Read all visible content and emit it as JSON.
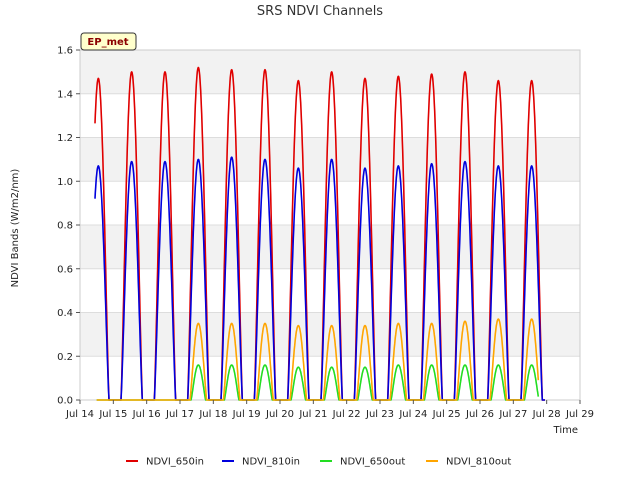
{
  "chart_data": {
    "type": "line",
    "title": "SRS NDVI Channels",
    "xlabel": "Time",
    "ylabel": "NDVI Bands (W/m2/nm)",
    "badge": "EP_met",
    "xlim": [
      14,
      29
    ],
    "ylim": [
      0,
      1.6
    ],
    "x_ticks": [
      14,
      15,
      16,
      17,
      18,
      19,
      20,
      21,
      22,
      23,
      24,
      25,
      26,
      27,
      28,
      29
    ],
    "x_tick_labels": [
      "Jul 14",
      "Jul 15",
      "Jul 16",
      "Jul 17",
      "Jul 18",
      "Jul 19",
      "Jul 20",
      "Jul 21",
      "Jul 22",
      "Jul 23",
      "Jul 24",
      "Jul 25",
      "Jul 26",
      "Jul 27",
      "Jul 28",
      "Jul 29"
    ],
    "y_ticks": [
      0.0,
      0.2,
      0.4,
      0.6,
      0.8,
      1.0,
      1.2,
      1.4,
      1.6
    ],
    "y_tick_labels": [
      "0.0",
      "0.2",
      "0.4",
      "0.6",
      "0.8",
      "1.0",
      "1.2",
      "1.4",
      "1.6"
    ],
    "grid": true,
    "shaded_bands": true,
    "legend_position": "bottom",
    "days": [
      14.5,
      15.5,
      16.5,
      17.5,
      18.5,
      19.5,
      20.5,
      21.5,
      22.5,
      23.5,
      24.5,
      25.5,
      26.5,
      27.5
    ],
    "series": [
      {
        "name": "NDVI_650in",
        "color": "#e00000",
        "peaks": [
          1.47,
          1.5,
          1.5,
          1.52,
          1.51,
          1.51,
          1.46,
          1.5,
          1.47,
          1.48,
          1.49,
          1.5,
          1.46,
          1.46
        ],
        "halfwidth": 0.32,
        "x_range": [
          14.45,
          27.95
        ]
      },
      {
        "name": "NDVI_810in",
        "color": "#0000dd",
        "peaks": [
          1.07,
          1.09,
          1.09,
          1.1,
          1.11,
          1.1,
          1.06,
          1.1,
          1.06,
          1.07,
          1.08,
          1.09,
          1.07,
          1.07
        ],
        "halfwidth": 0.32,
        "x_range": [
          14.45,
          27.95
        ]
      },
      {
        "name": "NDVI_650out",
        "color": "#22dd22",
        "peaks": [
          0.0,
          0.0,
          0.0,
          0.16,
          0.16,
          0.16,
          0.15,
          0.15,
          0.15,
          0.16,
          0.16,
          0.16,
          0.16,
          0.16
        ],
        "halfwidth": 0.22,
        "x_range": [
          14.5,
          27.75
        ]
      },
      {
        "name": "NDVI_810out",
        "color": "#ffa500",
        "peaks": [
          0.0,
          0.0,
          0.0,
          0.35,
          0.35,
          0.35,
          0.34,
          0.34,
          0.34,
          0.35,
          0.35,
          0.36,
          0.37,
          0.37
        ],
        "halfwidth": 0.25,
        "x_range": [
          14.5,
          27.75
        ]
      }
    ]
  }
}
